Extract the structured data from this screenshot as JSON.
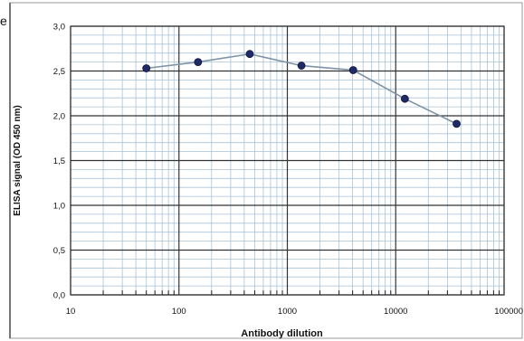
{
  "edge_text": "e",
  "chart_data": {
    "type": "line",
    "title": "",
    "xlabel": "Antibody dilution",
    "ylabel": "ELISA signal (OD 450 nm)",
    "xscale": "log",
    "xlim": [
      10,
      100000
    ],
    "ylim": [
      0,
      3.0
    ],
    "grid": true,
    "legend": "none",
    "x_ticks": [
      10,
      100,
      1000,
      10000,
      100000
    ],
    "x_tick_labels": [
      "10",
      "100",
      "1000",
      "10000",
      "100000"
    ],
    "y_ticks": [
      0,
      0.5,
      1.0,
      1.5,
      2.0,
      2.5,
      3.0
    ],
    "y_tick_labels": [
      "0,0",
      "0,5",
      "1,0",
      "1,5",
      "2,0",
      "2,5",
      "3,0"
    ],
    "series": [
      {
        "x": [
          50,
          150,
          450,
          1350,
          4050,
          12150,
          36450
        ],
        "y": [
          2.53,
          2.6,
          2.69,
          2.56,
          2.51,
          2.19,
          1.91
        ]
      }
    ],
    "colors": {
      "line": "#7f93a6",
      "marker": "#1f2a66",
      "major_grid": "#333333",
      "minor_grid": "#a9c3d8",
      "frame": "#9a9a9a"
    }
  }
}
